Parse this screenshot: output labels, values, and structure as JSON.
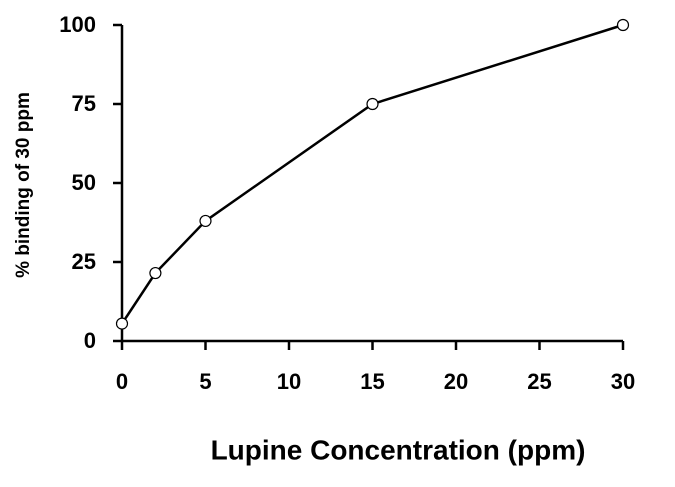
{
  "chart_data": {
    "type": "line",
    "x_label": "Lupine Concentration (ppm)",
    "y_label": "% binding of 30 ppm",
    "x": [
      0,
      2,
      5,
      15,
      30
    ],
    "series": [
      {
        "name": "binding",
        "color": "#000000",
        "values": [
          5.5,
          21.5,
          38,
          75,
          100
        ]
      }
    ],
    "xlim": [
      0,
      30
    ],
    "xticks": [
      0,
      5,
      10,
      15,
      20,
      25,
      30
    ],
    "ylim": [
      0,
      100
    ],
    "yticks": [
      0,
      25,
      50,
      75,
      100
    ],
    "grid": false,
    "markers": true
  }
}
